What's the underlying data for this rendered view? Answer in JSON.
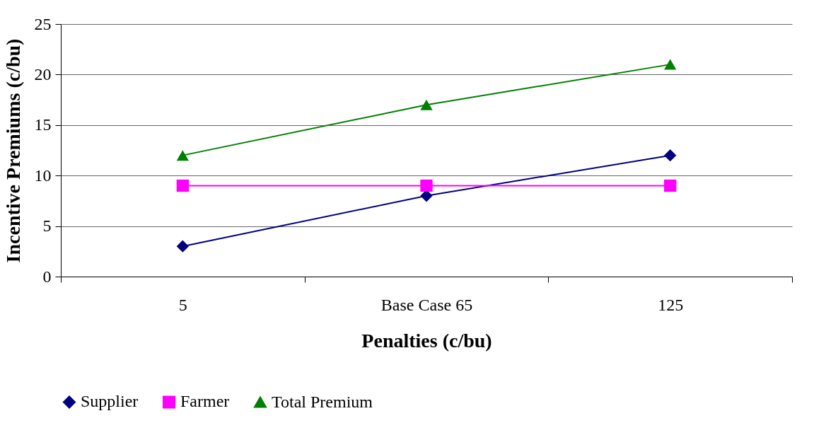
{
  "chart_data": {
    "type": "line",
    "xlabel": "Penalties (c/bu)",
    "ylabel": "Incentive Premiums (c/bu)",
    "categories": [
      "5",
      "Base Case 65",
      "125"
    ],
    "series": [
      {
        "name": "Supplier",
        "color": "#000080",
        "marker": "diamond",
        "values": [
          3,
          8,
          12
        ]
      },
      {
        "name": "Farmer",
        "color": "#ff00ff",
        "marker": "square",
        "values": [
          9,
          9,
          9
        ]
      },
      {
        "name": "Total Premium",
        "color": "#008000",
        "marker": "triangle",
        "values": [
          12,
          17,
          21
        ]
      }
    ],
    "ylim": [
      0,
      25
    ],
    "yticks": [
      0,
      5,
      10,
      15,
      20,
      25
    ],
    "grid": "y",
    "legend": "bottom"
  }
}
